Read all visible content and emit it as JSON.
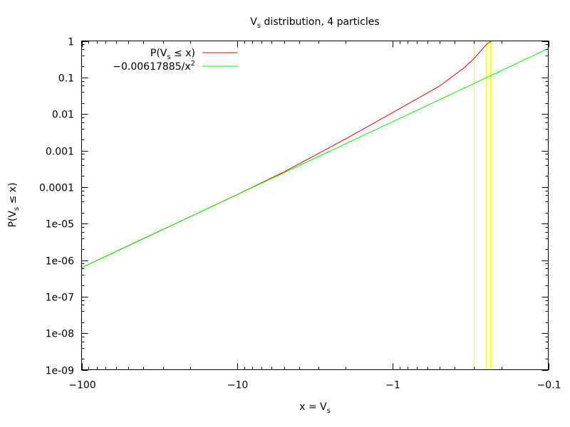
{
  "chart_data": {
    "type": "line",
    "title": "V",
    "title_sub": "s",
    "title_rest": " distribution, 4 particles",
    "xlabel_main": "x = V",
    "xlabel_sub": "s",
    "ylabel_pre": "P(V",
    "ylabel_sub": "s",
    "ylabel_post": " ≤ x)",
    "xscale": "symlog-negative",
    "yscale": "log",
    "xlim": [
      -100,
      -0.1
    ],
    "ylim": [
      1e-09,
      1
    ],
    "x_ticks": [
      {
        "value": -100,
        "label": "−100"
      },
      {
        "value": -10,
        "label": "−10"
      },
      {
        "value": -1,
        "label": "−1"
      },
      {
        "value": -0.1,
        "label": "−0.1"
      }
    ],
    "y_ticks": [
      {
        "value": 1,
        "label": "1"
      },
      {
        "value": 0.1,
        "label": "0.1"
      },
      {
        "value": 0.01,
        "label": "0.01"
      },
      {
        "value": 0.001,
        "label": "0.001"
      },
      {
        "value": 0.0001,
        "label": "0.0001"
      },
      {
        "value": 1e-05,
        "label": "1e-05"
      },
      {
        "value": 1e-06,
        "label": "1e-06"
      },
      {
        "value": 1e-07,
        "label": "1e-07"
      },
      {
        "value": 1e-08,
        "label": "1e-08"
      },
      {
        "value": 1e-09,
        "label": "1e-09"
      }
    ],
    "legend_position": "top-left",
    "grid": false,
    "series": [
      {
        "name": "P(Vs ≤ x)",
        "legend_pre": "P(V",
        "legend_sub": "s",
        "legend_post": " ≤ x)",
        "color": "#ff0000",
        "points": [
          {
            "x": -100,
            "y": 6.2e-07
          },
          {
            "x": -50,
            "y": 2.5e-06
          },
          {
            "x": -20,
            "y": 1.55e-05
          },
          {
            "x": -10,
            "y": 6.2e-05
          },
          {
            "x": -5,
            "y": 0.00026
          },
          {
            "x": -2,
            "y": 0.0021
          },
          {
            "x": -1,
            "y": 0.011
          },
          {
            "x": -0.5,
            "y": 0.058
          },
          {
            "x": -0.35,
            "y": 0.18
          },
          {
            "x": -0.3,
            "y": 0.33
          },
          {
            "x": -0.27,
            "y": 0.55
          },
          {
            "x": -0.25,
            "y": 0.8
          },
          {
            "x": -0.235,
            "y": 0.97
          },
          {
            "x": -0.23,
            "y": 1.0
          }
        ]
      },
      {
        "name": "−0.00617885/x²",
        "legend_pre": "−0.00617885/x",
        "legend_sup": "2",
        "color": "#00ff00",
        "points": [
          {
            "x": -100,
            "y": 6.17885e-07
          },
          {
            "x": -30,
            "y": 6.8654e-06
          },
          {
            "x": -10,
            "y": 6.17885e-05
          },
          {
            "x": -3,
            "y": 0.00068654
          },
          {
            "x": -1,
            "y": 0.00617885
          },
          {
            "x": -0.3,
            "y": 0.068654
          },
          {
            "x": -0.1,
            "y": 0.617885
          }
        ]
      }
    ],
    "vertical_markers": {
      "color": "#ffff00",
      "x": [
        -0.3,
        -0.25,
        -0.235
      ]
    }
  }
}
